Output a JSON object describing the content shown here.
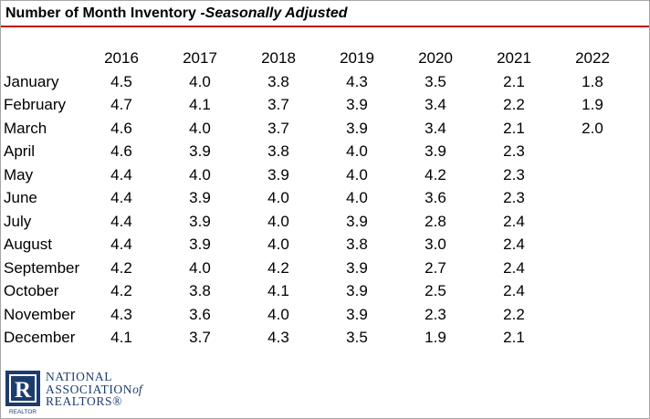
{
  "header": {
    "title": "Number of Month Inventory - ",
    "subtitle": "Seasonally Adjusted"
  },
  "chart_data": {
    "type": "table",
    "title": "Number of Month Inventory - Seasonally Adjusted",
    "columns": [
      "2016",
      "2017",
      "2018",
      "2019",
      "2020",
      "2021",
      "2022"
    ],
    "rows": [
      {
        "month": "January",
        "values": [
          "4.5",
          "4.0",
          "3.8",
          "4.3",
          "3.5",
          "2.1",
          "1.8"
        ]
      },
      {
        "month": "February",
        "values": [
          "4.7",
          "4.1",
          "3.7",
          "3.9",
          "3.4",
          "2.2",
          "1.9"
        ]
      },
      {
        "month": "March",
        "values": [
          "4.6",
          "4.0",
          "3.7",
          "3.9",
          "3.4",
          "2.1",
          "2.0"
        ]
      },
      {
        "month": "April",
        "values": [
          "4.6",
          "3.9",
          "3.8",
          "4.0",
          "3.9",
          "2.3",
          ""
        ]
      },
      {
        "month": "May",
        "values": [
          "4.4",
          "4.0",
          "3.9",
          "4.0",
          "4.2",
          "2.3",
          ""
        ]
      },
      {
        "month": "June",
        "values": [
          "4.4",
          "3.9",
          "4.0",
          "4.0",
          "3.6",
          "2.3",
          ""
        ]
      },
      {
        "month": "July",
        "values": [
          "4.4",
          "3.9",
          "4.0",
          "3.9",
          "2.8",
          "2.4",
          ""
        ]
      },
      {
        "month": "August",
        "values": [
          "4.4",
          "3.9",
          "4.0",
          "3.8",
          "3.0",
          "2.4",
          ""
        ]
      },
      {
        "month": "September",
        "values": [
          "4.2",
          "4.0",
          "4.2",
          "3.9",
          "2.7",
          "2.4",
          ""
        ]
      },
      {
        "month": "October",
        "values": [
          "4.2",
          "3.8",
          "4.1",
          "3.9",
          "2.5",
          "2.4",
          ""
        ]
      },
      {
        "month": "November",
        "values": [
          "4.3",
          "3.6",
          "4.0",
          "3.9",
          "2.3",
          "2.2",
          ""
        ]
      },
      {
        "month": "December",
        "values": [
          "4.1",
          "3.7",
          "4.3",
          "3.5",
          "1.9",
          "2.1",
          ""
        ]
      }
    ]
  },
  "logo": {
    "letter": "R",
    "mark_caption": "REALTOR",
    "line1": "NATIONAL",
    "line2": "ASSOCIATION",
    "line2_suffix": "of",
    "line3": "REALTORS®",
    "color": "#1d3c6e"
  }
}
